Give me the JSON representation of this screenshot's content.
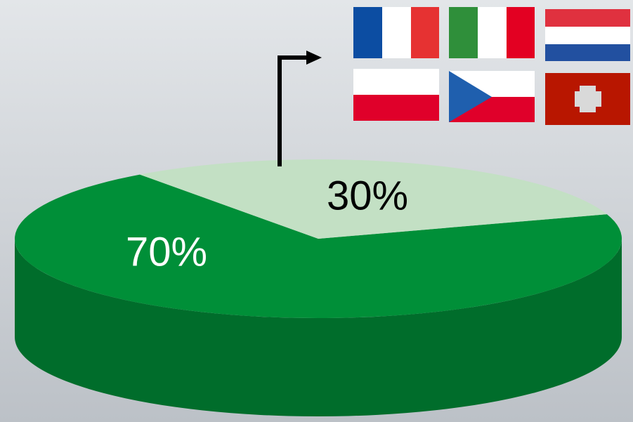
{
  "chart_data": {
    "type": "pie",
    "values": [
      70,
      30
    ],
    "value_labels": [
      "70%",
      "30%"
    ],
    "colors": [
      "#008f38",
      "#c3e0c4"
    ],
    "label_colors": [
      "#ffffff",
      "#000000"
    ]
  }
}
